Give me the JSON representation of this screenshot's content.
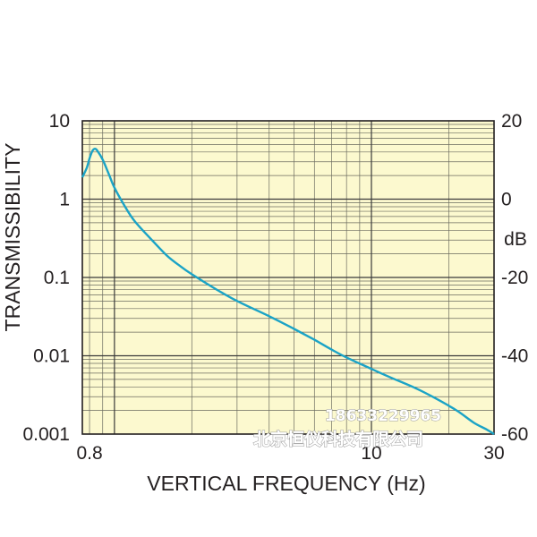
{
  "chart_data": {
    "type": "line",
    "title": "",
    "xlabel": "VERTICAL FREQUENCY (Hz)",
    "ylabel": "TRANSMISSIBILITY",
    "y2label": "dB",
    "xscale": "log",
    "yscale": "log",
    "xlim": [
      0.75,
      30
    ],
    "ylim": [
      0.001,
      10
    ],
    "y2lim": [
      -60,
      20
    ],
    "grid": true,
    "background_color": "#fcf9cf",
    "line_color": "#1ba3c6",
    "x_tick_labels": [
      {
        "value": 0.8,
        "label": "0.8"
      },
      {
        "value": 10,
        "label": "10"
      },
      {
        "value": 30,
        "label": "30"
      }
    ],
    "y_tick_labels": [
      {
        "value": 10,
        "label": "10"
      },
      {
        "value": 1,
        "label": "1"
      },
      {
        "value": 0.1,
        "label": "0.1"
      },
      {
        "value": 0.01,
        "label": "0.01"
      },
      {
        "value": 0.001,
        "label": "0.001"
      }
    ],
    "y2_tick_labels": [
      {
        "value": 20,
        "label": "20"
      },
      {
        "value": 0,
        "label": "0"
      },
      {
        "value": -20,
        "label": "-20"
      },
      {
        "value": -40,
        "label": "-40"
      },
      {
        "value": -60,
        "label": "-60"
      }
    ],
    "series": [
      {
        "x": [
          0.75,
          0.78,
          0.8,
          0.82,
          0.84,
          0.86,
          0.9,
          0.95,
          1.0,
          1.1,
          1.2,
          1.4,
          1.6,
          1.8,
          2.0,
          2.5,
          3.0,
          4.0,
          5.0,
          6.0,
          7.0,
          8.0,
          10.0,
          12.0,
          15.0,
          18.0,
          20.0,
          22.0,
          25.0,
          28.0,
          30.0
        ],
        "y": [
          1.9,
          2.5,
          3.3,
          4.1,
          4.4,
          4.1,
          3.2,
          2.1,
          1.4,
          0.8,
          0.52,
          0.3,
          0.19,
          0.14,
          0.11,
          0.07,
          0.05,
          0.032,
          0.022,
          0.016,
          0.012,
          0.0095,
          0.0068,
          0.0052,
          0.0038,
          0.0028,
          0.0023,
          0.0019,
          0.0014,
          0.00115,
          0.001
        ]
      }
    ]
  },
  "watermark": {
    "phone": "18633229965",
    "company": "北京恒仪科技有限公司"
  }
}
